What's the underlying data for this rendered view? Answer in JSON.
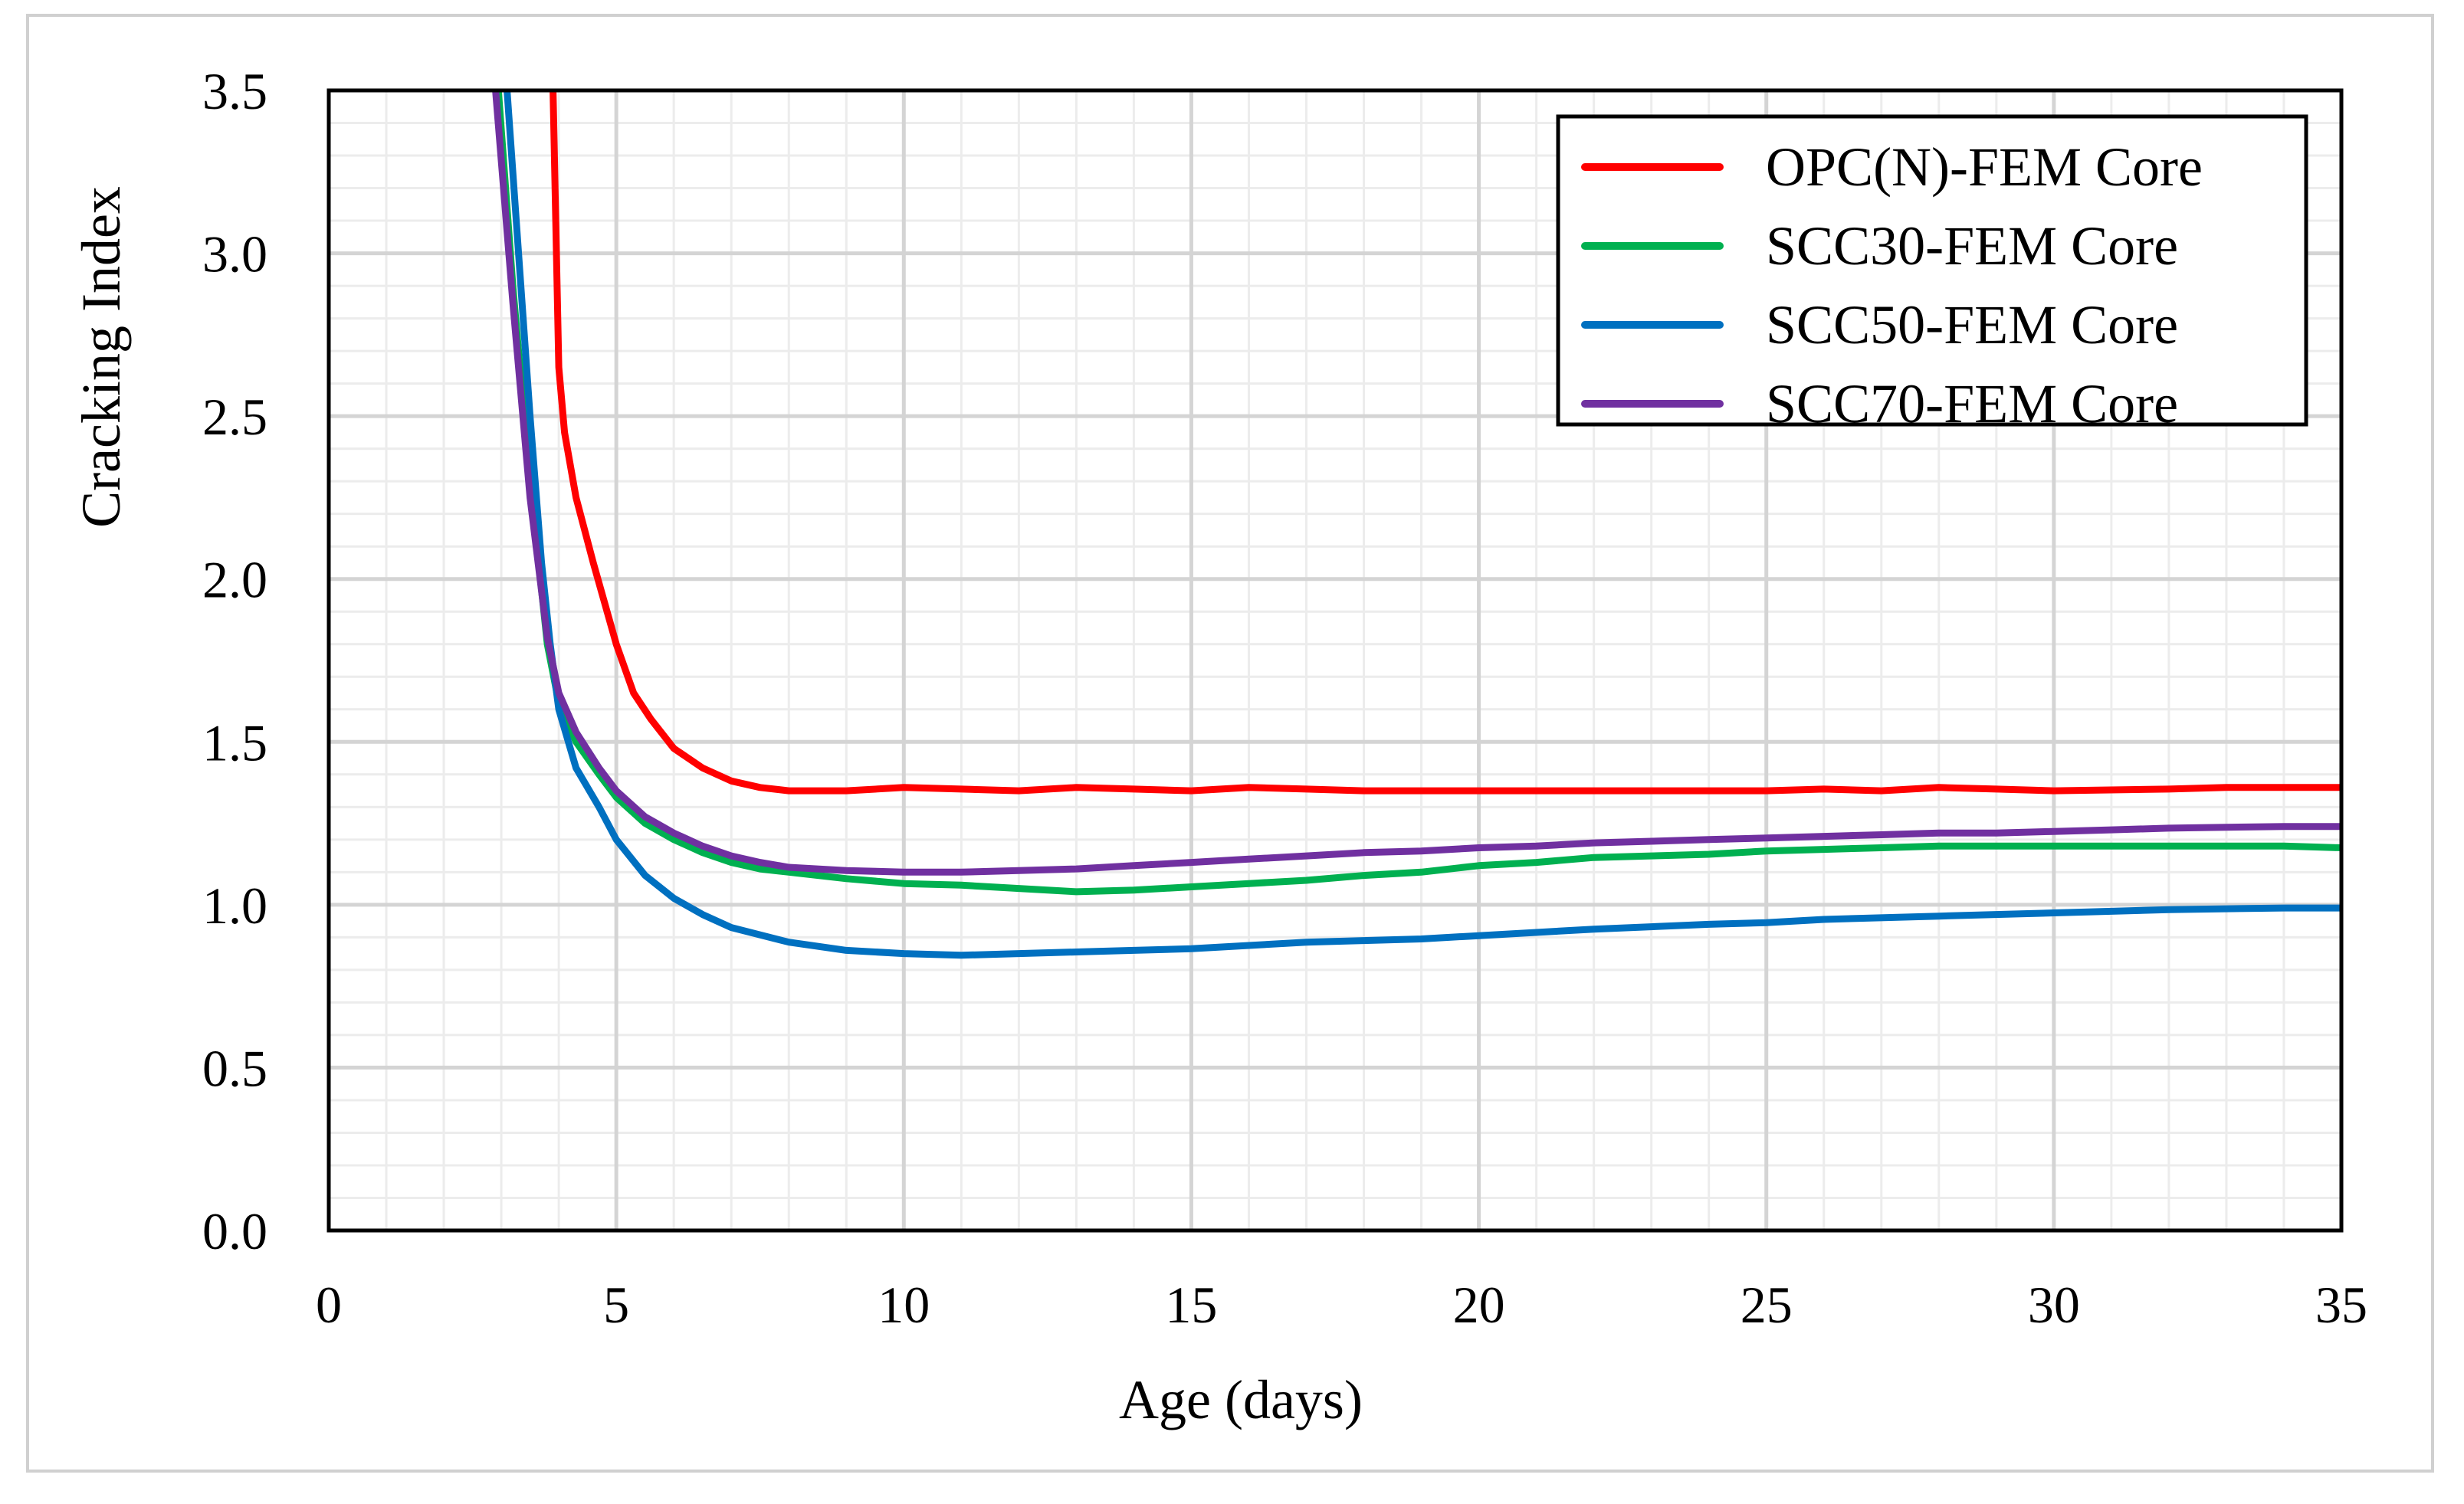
{
  "chart_data": {
    "type": "line",
    "title": "",
    "xlabel": "Age (days)",
    "ylabel": "Cracking Index",
    "xlim": [
      0,
      35
    ],
    "ylim": [
      0,
      3.5
    ],
    "xticks": [
      0,
      5,
      10,
      15,
      20,
      25,
      30,
      35
    ],
    "xtick_labels": [
      "0",
      "5",
      "10",
      "15",
      "20",
      "25",
      "30",
      "35"
    ],
    "yticks": [
      0,
      0.5,
      1,
      1.5,
      2,
      2.5,
      3,
      3.5
    ],
    "ytick_labels": [
      "0.0",
      "0.5",
      "1.0",
      "1.5",
      "2.0",
      "2.5",
      "3.0",
      "3.5"
    ],
    "x_minor_step": 1,
    "y_minor_step": 0.1,
    "grid": true,
    "legend_position": "top-right",
    "series": [
      {
        "name": "OPC(N)-FEM Core",
        "color": "#ff0000",
        "x": [
          3.9,
          4.0,
          4.1,
          4.3,
          4.6,
          5.0,
          5.3,
          5.6,
          6.0,
          6.5,
          7.0,
          7.5,
          8.0,
          8.5,
          9.0,
          10.0,
          11.0,
          12.0,
          13.0,
          14.0,
          15.0,
          16.0,
          17.0,
          18.0,
          20.0,
          22.0,
          24.0,
          25.0,
          26.0,
          27.0,
          28.0,
          29.0,
          30.0,
          32.0,
          33.0,
          34.0,
          35.0
        ],
        "y": [
          3.5,
          2.65,
          2.45,
          2.25,
          2.05,
          1.8,
          1.65,
          1.57,
          1.48,
          1.42,
          1.38,
          1.36,
          1.35,
          1.35,
          1.35,
          1.36,
          1.355,
          1.35,
          1.36,
          1.355,
          1.35,
          1.36,
          1.355,
          1.35,
          1.35,
          1.35,
          1.35,
          1.35,
          1.355,
          1.35,
          1.36,
          1.355,
          1.35,
          1.355,
          1.36,
          1.36,
          1.36
        ]
      },
      {
        "name": "SCC30-FEM Core",
        "color": "#00b050",
        "x": [
          2.95,
          3.2,
          3.5,
          3.8,
          4.0,
          4.3,
          4.7,
          5.0,
          5.5,
          6.0,
          6.5,
          7.0,
          7.5,
          8.0,
          9.0,
          10.0,
          11.0,
          12.0,
          13.0,
          14.0,
          15.0,
          16.0,
          17.0,
          18.0,
          19.0,
          20.0,
          21.0,
          22.0,
          23.0,
          24.0,
          25.0,
          26.0,
          27.0,
          28.0,
          29.0,
          30.0,
          31.0,
          32.0,
          33.0,
          34.0,
          35.0
        ],
        "y": [
          3.5,
          2.9,
          2.3,
          1.8,
          1.62,
          1.5,
          1.4,
          1.33,
          1.25,
          1.2,
          1.16,
          1.13,
          1.11,
          1.1,
          1.08,
          1.065,
          1.06,
          1.05,
          1.04,
          1.045,
          1.055,
          1.065,
          1.075,
          1.09,
          1.1,
          1.12,
          1.13,
          1.145,
          1.15,
          1.155,
          1.165,
          1.17,
          1.175,
          1.18,
          1.18,
          1.18,
          1.18,
          1.18,
          1.18,
          1.18,
          1.175
        ]
      },
      {
        "name": "SCC50-FEM Core",
        "color": "#0070c0",
        "x": [
          3.1,
          3.3,
          3.5,
          3.7,
          3.85,
          4.0,
          4.3,
          4.7,
          5.0,
          5.5,
          6.0,
          6.5,
          7.0,
          8.0,
          9.0,
          10.0,
          11.0,
          12.0,
          13.0,
          14.0,
          15.0,
          16.0,
          17.0,
          18.0,
          19.0,
          20.0,
          22.0,
          24.0,
          25.0,
          26.0,
          28.0,
          30.0,
          32.0,
          34.0,
          35.0
        ],
        "y": [
          3.5,
          3.0,
          2.5,
          2.05,
          1.8,
          1.6,
          1.42,
          1.3,
          1.2,
          1.09,
          1.02,
          0.97,
          0.93,
          0.885,
          0.86,
          0.85,
          0.845,
          0.85,
          0.855,
          0.86,
          0.865,
          0.875,
          0.885,
          0.89,
          0.895,
          0.905,
          0.925,
          0.94,
          0.945,
          0.955,
          0.965,
          0.975,
          0.985,
          0.99,
          0.99
        ]
      },
      {
        "name": "SCC70-FEM Core",
        "color": "#7030a0",
        "x": [
          2.9,
          3.2,
          3.5,
          3.8,
          4.0,
          4.3,
          4.7,
          5.0,
          5.5,
          6.0,
          6.5,
          7.0,
          7.5,
          8.0,
          9.0,
          10.0,
          11.0,
          12.0,
          13.0,
          14.0,
          15.0,
          16.0,
          17.0,
          18.0,
          19.0,
          20.0,
          21.0,
          22.0,
          23.0,
          24.0,
          25.0,
          26.0,
          27.0,
          28.0,
          29.0,
          30.0,
          31.0,
          32.0,
          33.0,
          34.0,
          35.0
        ],
        "y": [
          3.5,
          2.85,
          2.25,
          1.82,
          1.65,
          1.53,
          1.42,
          1.35,
          1.27,
          1.22,
          1.18,
          1.15,
          1.13,
          1.115,
          1.105,
          1.1,
          1.1,
          1.105,
          1.11,
          1.12,
          1.13,
          1.14,
          1.15,
          1.16,
          1.165,
          1.175,
          1.18,
          1.19,
          1.195,
          1.2,
          1.205,
          1.21,
          1.215,
          1.22,
          1.22,
          1.225,
          1.23,
          1.235,
          1.238,
          1.24,
          1.24
        ]
      }
    ]
  }
}
